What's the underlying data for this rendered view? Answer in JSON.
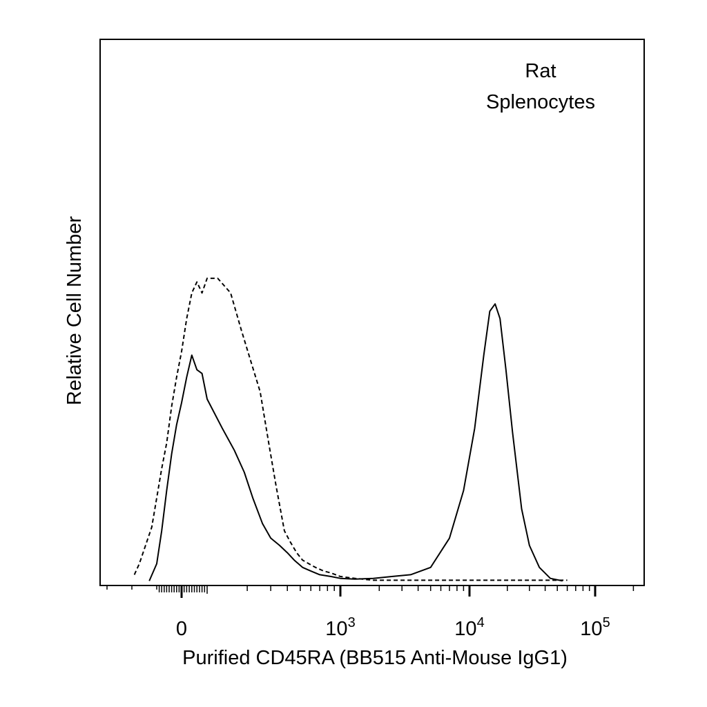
{
  "chart_data": {
    "type": "line",
    "title": "",
    "annotation": [
      "Rat",
      "Splenocytes"
    ],
    "xlabel": "Purified CD45RA (BB515 Anti-Mouse IgG1)",
    "ylabel": "Relative Cell Number",
    "x_scale": "biexponential",
    "xlim": [
      -300,
      220000
    ],
    "ylim": [
      0,
      1.0
    ],
    "xticks": [
      {
        "base": "0",
        "exp": "",
        "value": 0
      },
      {
        "base": "10",
        "exp": "3",
        "value": 1000
      },
      {
        "base": "10",
        "exp": "4",
        "value": 10000
      },
      {
        "base": "10",
        "exp": "5",
        "value": 100000
      }
    ],
    "series": [
      {
        "style": "dashed",
        "x": [
          -190,
          -170,
          -120,
          -80,
          -60,
          -40,
          -20,
          0,
          20,
          40,
          60,
          80,
          100,
          120,
          150,
          180,
          210,
          250,
          290,
          330,
          380,
          420,
          470,
          520,
          580,
          650,
          750,
          850,
          1000,
          1300,
          1800,
          2500,
          4000,
          8000,
          20000,
          60000
        ],
        "y": [
          0.02,
          0.05,
          0.15,
          0.31,
          0.38,
          0.48,
          0.56,
          0.63,
          0.72,
          0.79,
          0.82,
          0.79,
          0.83,
          0.83,
          0.79,
          0.69,
          0.61,
          0.52,
          0.38,
          0.26,
          0.14,
          0.11,
          0.08,
          0.06,
          0.05,
          0.04,
          0.03,
          0.025,
          0.015,
          0.01,
          0.005,
          0.005,
          0.005,
          0.005,
          0.005,
          0.005
        ]
      },
      {
        "style": "solid",
        "x": [
          -130,
          -100,
          -80,
          -60,
          -40,
          -20,
          0,
          20,
          40,
          60,
          80,
          100,
          130,
          160,
          190,
          220,
          260,
          300,
          350,
          400,
          450,
          520,
          600,
          700,
          850,
          1000,
          1300,
          1800,
          2500,
          3500,
          5000,
          7000,
          9000,
          11000,
          13000,
          14500,
          16000,
          17500,
          19500,
          22000,
          26000,
          30000,
          36000,
          44000,
          55000
        ],
        "y": [
          0.003,
          0.05,
          0.14,
          0.25,
          0.35,
          0.43,
          0.49,
          0.56,
          0.62,
          0.58,
          0.57,
          0.5,
          0.42,
          0.36,
          0.3,
          0.23,
          0.16,
          0.12,
          0.1,
          0.08,
          0.06,
          0.04,
          0.03,
          0.02,
          0.015,
          0.01,
          0.008,
          0.01,
          0.015,
          0.02,
          0.04,
          0.12,
          0.25,
          0.42,
          0.62,
          0.74,
          0.76,
          0.72,
          0.58,
          0.41,
          0.2,
          0.1,
          0.04,
          0.01,
          0.003
        ]
      }
    ]
  }
}
